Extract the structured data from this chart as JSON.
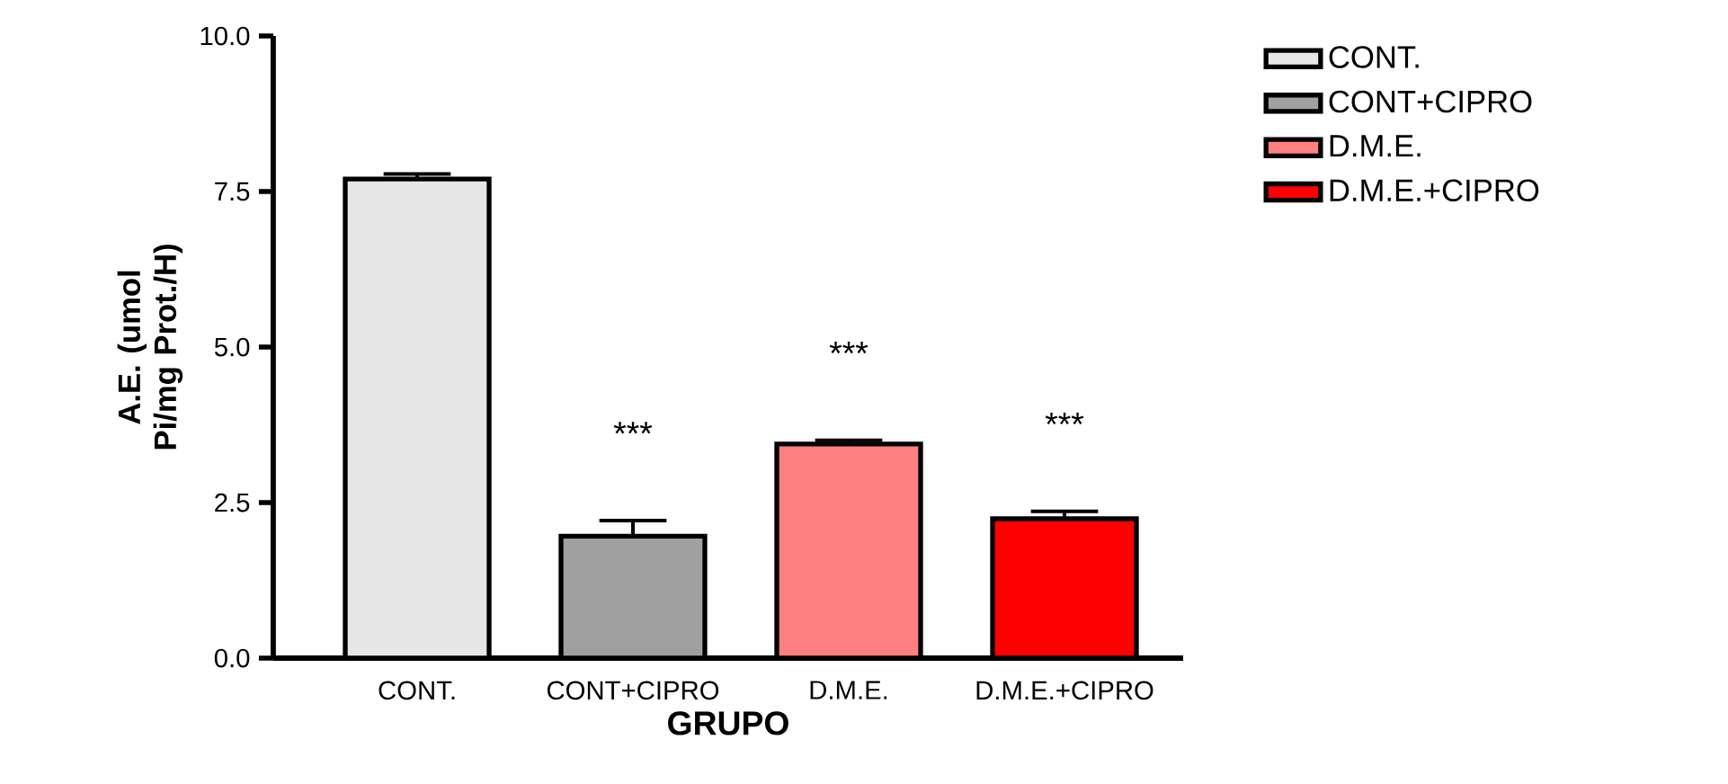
{
  "chart_data": {
    "type": "bar",
    "categories": [
      "CONT.",
      "CONT+CIPRO",
      "D.M.E.",
      "D.M.E.+CIPRO"
    ],
    "series": [
      {
        "name": "CONT.",
        "color": "#e6e6e6",
        "values": [
          7.7,
          null,
          null,
          null
        ],
        "errors": [
          0.08,
          null,
          null,
          null
        ]
      },
      {
        "name": "CONT+CIPRO",
        "color": "#a0a0a0",
        "values": [
          null,
          1.96,
          null,
          null
        ],
        "errors": [
          null,
          0.25,
          null,
          null
        ]
      },
      {
        "name": "D.M.E.",
        "color": "#ff8080",
        "values": [
          null,
          null,
          3.44,
          null
        ],
        "errors": [
          null,
          null,
          0.06,
          null
        ]
      },
      {
        "name": "D.M.E.+CIPRO",
        "color": "#ff0000",
        "values": [
          null,
          null,
          null,
          2.24
        ],
        "errors": [
          null,
          null,
          null,
          0.12
        ]
      }
    ],
    "xlabel": "GRUPO",
    "ylabel": "A.E. (umol Pi/mg Prot./H)",
    "ylim": [
      0,
      10
    ],
    "yticks": [
      {
        "value": 0,
        "label": "0.0"
      },
      {
        "value": 2.5,
        "label": "2.5"
      },
      {
        "value": 5,
        "label": "5.0"
      },
      {
        "value": 7.5,
        "label": "7.5"
      },
      {
        "value": 10,
        "label": "10.0"
      }
    ],
    "annotations": [
      "***",
      "***",
      "***"
    ],
    "legend": "right",
    "grid": false
  }
}
